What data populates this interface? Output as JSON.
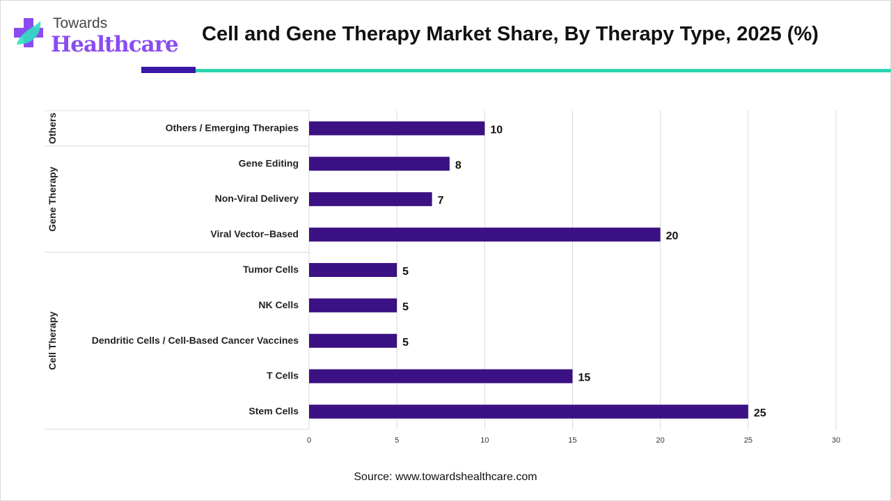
{
  "logo": {
    "line1": "Towards",
    "line2": "Healthcare"
  },
  "source": "Source: www.towardshealthcare.com",
  "colors": {
    "bar": "#3b1183",
    "accent_dark": "#3a17a4",
    "accent_teal": "#2dd4b0"
  },
  "chart_data": {
    "type": "bar",
    "orientation": "horizontal",
    "title": "Cell and Gene Therapy Market Share, By Therapy Type, 2025 (%)",
    "xlabel": "",
    "ylabel": "",
    "xlim": [
      0,
      30
    ],
    "xticks": [
      0,
      5,
      10,
      15,
      20,
      25,
      30
    ],
    "grid": true,
    "groups": [
      {
        "name": "Others",
        "categories": [
          "Others / Emerging Therapies"
        ],
        "values": [
          10
        ]
      },
      {
        "name": "Gene Therapy",
        "categories": [
          "Gene Editing",
          "Non-Viral Delivery",
          "Viral Vector–Based"
        ],
        "values": [
          8,
          7,
          20
        ]
      },
      {
        "name": "Cell Therapy",
        "categories": [
          "Tumor Cells",
          "NK Cells",
          "Dendritic Cells / Cell-Based Cancer Vaccines",
          "T Cells",
          "Stem Cells"
        ],
        "values": [
          5,
          5,
          5,
          15,
          25
        ]
      }
    ]
  }
}
